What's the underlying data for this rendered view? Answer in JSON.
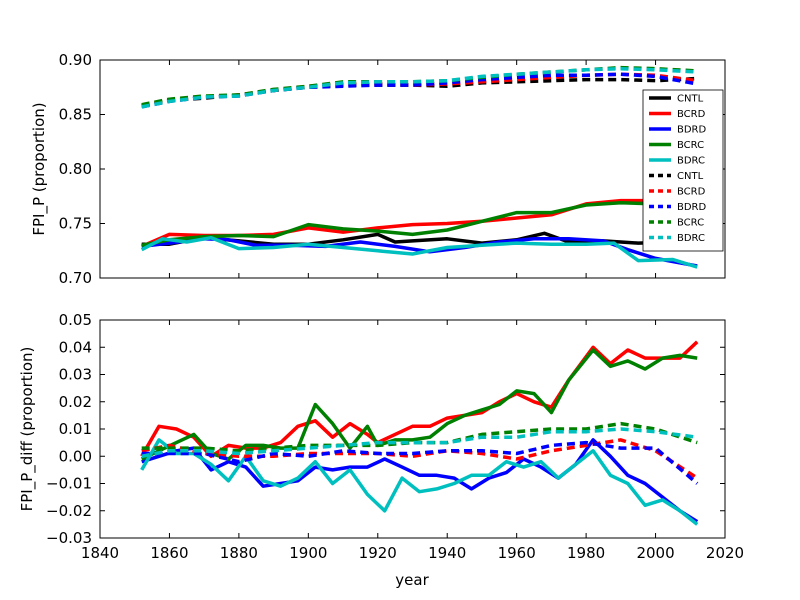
{
  "chart_data": [
    {
      "type": "line",
      "title": "",
      "xlabel": "",
      "ylabel": "FPI_P (proportion)",
      "xlim": [
        1840,
        2020
      ],
      "ylim": [
        0.7,
        0.9
      ],
      "yticks": [
        "0.70",
        "0.75",
        "0.80",
        "0.85",
        "0.90"
      ],
      "xticks": [],
      "legend": {
        "placement": "right",
        "entries": [
          {
            "name": "CNTL",
            "color": "#000000",
            "style": "solid"
          },
          {
            "name": "BCRD",
            "color": "#ff0000",
            "style": "solid"
          },
          {
            "name": "BDRD",
            "color": "#0000ff",
            "style": "solid"
          },
          {
            "name": "BCRC",
            "color": "#008000",
            "style": "solid"
          },
          {
            "name": "BDRC",
            "color": "#00bfbf",
            "style": "solid"
          },
          {
            "name": "CNTL",
            "color": "#000000",
            "style": "dashed"
          },
          {
            "name": "BCRD",
            "color": "#ff0000",
            "style": "dashed"
          },
          {
            "name": "BDRD",
            "color": "#0000ff",
            "style": "dashed"
          },
          {
            "name": "BCRC",
            "color": "#008000",
            "style": "dashed"
          },
          {
            "name": "BDRC",
            "color": "#00bfbf",
            "style": "dashed"
          }
        ]
      },
      "series": [
        {
          "name": "CNTL",
          "color": "#000000",
          "style": "solid",
          "x": [
            1852,
            1860,
            1870,
            1880,
            1890,
            1900,
            1910,
            1920,
            1925,
            1930,
            1940,
            1950,
            1960,
            1968,
            1975,
            1985,
            1995,
            2005,
            2012
          ],
          "y": [
            0.731,
            0.731,
            0.737,
            0.734,
            0.731,
            0.731,
            0.735,
            0.74,
            0.733,
            0.734,
            0.736,
            0.732,
            0.735,
            0.741,
            0.733,
            0.734,
            0.732,
            0.733,
            0.736
          ]
        },
        {
          "name": "BCRD",
          "color": "#ff0000",
          "style": "solid",
          "x": [
            1852,
            1860,
            1870,
            1880,
            1890,
            1900,
            1910,
            1920,
            1930,
            1940,
            1950,
            1960,
            1970,
            1980,
            1990,
            2000,
            2012
          ],
          "y": [
            0.729,
            0.74,
            0.739,
            0.739,
            0.74,
            0.746,
            0.742,
            0.746,
            0.749,
            0.75,
            0.752,
            0.755,
            0.758,
            0.768,
            0.771,
            0.771,
            0.775
          ]
        },
        {
          "name": "BDRD",
          "color": "#0000ff",
          "style": "solid",
          "x": [
            1852,
            1860,
            1870,
            1877,
            1885,
            1895,
            1905,
            1915,
            1925,
            1935,
            1945,
            1955,
            1965,
            1975,
            1985,
            1992,
            2000,
            2012
          ],
          "y": [
            0.729,
            0.732,
            0.736,
            0.735,
            0.73,
            0.73,
            0.729,
            0.733,
            0.729,
            0.724,
            0.728,
            0.733,
            0.736,
            0.736,
            0.734,
            0.726,
            0.718,
            0.711
          ]
        },
        {
          "name": "BCRC",
          "color": "#008000",
          "style": "solid",
          "x": [
            1852,
            1860,
            1870,
            1880,
            1890,
            1900,
            1910,
            1920,
            1930,
            1940,
            1950,
            1960,
            1970,
            1980,
            1990,
            2000,
            2012
          ],
          "y": [
            0.73,
            0.735,
            0.738,
            0.739,
            0.738,
            0.749,
            0.745,
            0.743,
            0.74,
            0.744,
            0.752,
            0.76,
            0.76,
            0.767,
            0.769,
            0.768,
            0.774
          ]
        },
        {
          "name": "BDRC",
          "color": "#00bfbf",
          "style": "solid",
          "x": [
            1852,
            1858,
            1865,
            1872,
            1880,
            1890,
            1900,
            1910,
            1920,
            1930,
            1940,
            1950,
            1960,
            1970,
            1980,
            1988,
            1995,
            2005,
            2012
          ],
          "y": [
            0.726,
            0.736,
            0.733,
            0.737,
            0.727,
            0.728,
            0.731,
            0.728,
            0.725,
            0.722,
            0.728,
            0.73,
            0.732,
            0.731,
            0.731,
            0.732,
            0.716,
            0.717,
            0.71
          ]
        },
        {
          "name": "CNTL",
          "color": "#000000",
          "style": "dashed",
          "x": [
            1852,
            1860,
            1870,
            1880,
            1890,
            1900,
            1910,
            1920,
            1930,
            1940,
            1950,
            1960,
            1970,
            1980,
            1990,
            2000,
            2012
          ],
          "y": [
            0.858,
            0.863,
            0.865,
            0.868,
            0.872,
            0.875,
            0.877,
            0.877,
            0.877,
            0.876,
            0.879,
            0.88,
            0.881,
            0.882,
            0.882,
            0.881,
            0.883
          ]
        },
        {
          "name": "BCRD",
          "color": "#ff0000",
          "style": "dashed",
          "x": [
            1852,
            1860,
            1870,
            1880,
            1890,
            1900,
            1910,
            1920,
            1930,
            1940,
            1950,
            1960,
            1970,
            1980,
            1990,
            2000,
            2012
          ],
          "y": [
            0.858,
            0.863,
            0.866,
            0.868,
            0.872,
            0.876,
            0.878,
            0.878,
            0.877,
            0.878,
            0.88,
            0.882,
            0.884,
            0.886,
            0.887,
            0.886,
            0.881
          ]
        },
        {
          "name": "BDRD",
          "color": "#0000ff",
          "style": "dashed",
          "x": [
            1852,
            1860,
            1870,
            1880,
            1890,
            1900,
            1910,
            1920,
            1930,
            1940,
            1950,
            1960,
            1970,
            1980,
            1990,
            2000,
            2012
          ],
          "y": [
            0.857,
            0.862,
            0.866,
            0.867,
            0.872,
            0.875,
            0.876,
            0.877,
            0.877,
            0.879,
            0.882,
            0.884,
            0.886,
            0.886,
            0.887,
            0.885,
            0.878
          ]
        },
        {
          "name": "BCRC",
          "color": "#008000",
          "style": "dashed",
          "x": [
            1852,
            1860,
            1870,
            1880,
            1890,
            1900,
            1910,
            1920,
            1930,
            1940,
            1950,
            1960,
            1970,
            1980,
            1990,
            2000,
            2012
          ],
          "y": [
            0.859,
            0.864,
            0.867,
            0.868,
            0.873,
            0.876,
            0.88,
            0.88,
            0.88,
            0.881,
            0.884,
            0.887,
            0.889,
            0.891,
            0.893,
            0.892,
            0.89
          ]
        },
        {
          "name": "BDRC",
          "color": "#00bfbf",
          "style": "dashed",
          "x": [
            1852,
            1860,
            1870,
            1880,
            1890,
            1900,
            1910,
            1920,
            1930,
            1940,
            1950,
            1960,
            1970,
            1980,
            1990,
            2000,
            2012
          ],
          "y": [
            0.857,
            0.862,
            0.866,
            0.867,
            0.872,
            0.875,
            0.879,
            0.88,
            0.88,
            0.881,
            0.885,
            0.887,
            0.889,
            0.891,
            0.892,
            0.891,
            0.889
          ]
        }
      ]
    },
    {
      "type": "line",
      "title": "",
      "xlabel": "year",
      "ylabel": "FPI_P_diff (proportion)",
      "xlim": [
        1840,
        2020
      ],
      "ylim": [
        -0.03,
        0.05
      ],
      "yticks": [
        "−0.03",
        "−0.02",
        "−0.01",
        "0.00",
        "0.01",
        "0.02",
        "0.03",
        "0.04",
        "0.05"
      ],
      "xticks": [
        "1840",
        "1860",
        "1880",
        "1900",
        "1920",
        "1940",
        "1960",
        "1980",
        "2000",
        "2020"
      ],
      "series": [
        {
          "name": "BCRD",
          "color": "#ff0000",
          "style": "solid",
          "x": [
            1852,
            1857,
            1862,
            1867,
            1872,
            1877,
            1882,
            1887,
            1892,
            1897,
            1902,
            1907,
            1912,
            1917,
            1920,
            1925,
            1930,
            1935,
            1940,
            1945,
            1950,
            1955,
            1960,
            1965,
            1970,
            1975,
            1982,
            1987,
            1992,
            1997,
            2002,
            2007,
            2012
          ],
          "y": [
            0.0,
            0.011,
            0.01,
            0.007,
            0.0,
            0.004,
            0.003,
            0.003,
            0.005,
            0.011,
            0.013,
            0.007,
            0.012,
            0.008,
            0.005,
            0.008,
            0.011,
            0.011,
            0.014,
            0.015,
            0.016,
            0.02,
            0.023,
            0.02,
            0.018,
            0.028,
            0.04,
            0.034,
            0.039,
            0.036,
            0.036,
            0.036,
            0.042
          ]
        },
        {
          "name": "BDRD",
          "color": "#0000ff",
          "style": "solid",
          "x": [
            1852,
            1857,
            1862,
            1867,
            1872,
            1877,
            1882,
            1887,
            1892,
            1897,
            1902,
            1907,
            1912,
            1917,
            1922,
            1927,
            1932,
            1937,
            1942,
            1947,
            1952,
            1957,
            1962,
            1967,
            1972,
            1977,
            1982,
            1987,
            1992,
            1997,
            2002,
            2007,
            2012
          ],
          "y": [
            -0.002,
            0.0,
            0.002,
            0.003,
            -0.005,
            -0.002,
            -0.004,
            -0.011,
            -0.01,
            -0.009,
            -0.004,
            -0.005,
            -0.004,
            -0.004,
            -0.001,
            -0.004,
            -0.007,
            -0.007,
            -0.008,
            -0.012,
            -0.008,
            -0.006,
            -0.001,
            -0.004,
            -0.008,
            -0.003,
            0.006,
            0.0,
            -0.007,
            -0.01,
            -0.015,
            -0.02,
            -0.024
          ]
        },
        {
          "name": "BCRC",
          "color": "#008000",
          "style": "solid",
          "x": [
            1852,
            1857,
            1862,
            1867,
            1872,
            1877,
            1882,
            1887,
            1892,
            1897,
            1902,
            1907,
            1912,
            1917,
            1920,
            1925,
            1930,
            1935,
            1940,
            1945,
            1950,
            1955,
            1960,
            1965,
            1970,
            1975,
            1982,
            1987,
            1992,
            1997,
            2002,
            2007,
            2012
          ],
          "y": [
            -0.001,
            0.002,
            0.005,
            0.008,
            0.001,
            -0.001,
            0.004,
            0.004,
            0.003,
            0.003,
            0.019,
            0.012,
            0.003,
            0.011,
            0.004,
            0.006,
            0.006,
            0.007,
            0.012,
            0.015,
            0.017,
            0.019,
            0.024,
            0.023,
            0.016,
            0.028,
            0.039,
            0.033,
            0.035,
            0.032,
            0.036,
            0.037,
            0.036
          ]
        },
        {
          "name": "BDRC",
          "color": "#00bfbf",
          "style": "solid",
          "x": [
            1852,
            1857,
            1862,
            1867,
            1872,
            1877,
            1882,
            1887,
            1892,
            1897,
            1902,
            1907,
            1912,
            1917,
            1922,
            1927,
            1932,
            1937,
            1942,
            1947,
            1952,
            1957,
            1962,
            1967,
            1972,
            1977,
            1982,
            1987,
            1992,
            1997,
            2002,
            2007,
            2012
          ],
          "y": [
            -0.005,
            0.006,
            0.001,
            0.001,
            -0.003,
            -0.009,
            0.0,
            -0.009,
            -0.011,
            -0.008,
            -0.002,
            -0.01,
            -0.005,
            -0.014,
            -0.02,
            -0.008,
            -0.013,
            -0.012,
            -0.01,
            -0.007,
            -0.007,
            -0.002,
            -0.004,
            -0.002,
            -0.008,
            -0.003,
            0.002,
            -0.007,
            -0.01,
            -0.018,
            -0.016,
            -0.02,
            -0.025
          ]
        },
        {
          "name": "BCRD",
          "color": "#ff0000",
          "style": "dashed",
          "x": [
            1852,
            1860,
            1870,
            1880,
            1890,
            1900,
            1910,
            1920,
            1930,
            1940,
            1950,
            1960,
            1970,
            1980,
            1990,
            2000,
            2012
          ],
          "y": [
            0.002,
            0.004,
            0.001,
            0.0,
            0.0,
            0.001,
            0.001,
            0.001,
            0.0,
            0.002,
            0.001,
            -0.001,
            0.002,
            0.004,
            0.006,
            0.002,
            -0.008
          ]
        },
        {
          "name": "BDRD",
          "color": "#0000ff",
          "style": "dashed",
          "x": [
            1852,
            1860,
            1870,
            1880,
            1890,
            1900,
            1910,
            1920,
            1930,
            1940,
            1950,
            1960,
            1970,
            1980,
            1990,
            2000,
            2012
          ],
          "y": [
            0.001,
            0.001,
            0.001,
            -0.002,
            0.001,
            0.0,
            0.002,
            0.001,
            0.001,
            0.002,
            0.002,
            0.001,
            0.004,
            0.005,
            0.003,
            0.003,
            -0.01
          ]
        },
        {
          "name": "BCRC",
          "color": "#008000",
          "style": "dashed",
          "x": [
            1852,
            1860,
            1870,
            1880,
            1890,
            1900,
            1910,
            1920,
            1930,
            1940,
            1950,
            1960,
            1970,
            1980,
            1990,
            2000,
            2012
          ],
          "y": [
            0.003,
            0.003,
            0.003,
            0.002,
            0.003,
            0.004,
            0.004,
            0.004,
            0.005,
            0.005,
            0.008,
            0.009,
            0.01,
            0.01,
            0.012,
            0.01,
            0.005
          ]
        },
        {
          "name": "BDRC",
          "color": "#00bfbf",
          "style": "dashed",
          "x": [
            1852,
            1860,
            1870,
            1880,
            1890,
            1900,
            1910,
            1920,
            1930,
            1940,
            1950,
            1960,
            1970,
            1980,
            1990,
            2000,
            2012
          ],
          "y": [
            0.0,
            0.002,
            0.002,
            0.001,
            0.002,
            0.003,
            0.004,
            0.005,
            0.005,
            0.005,
            0.007,
            0.007,
            0.009,
            0.009,
            0.01,
            0.009,
            0.007
          ]
        }
      ]
    }
  ]
}
